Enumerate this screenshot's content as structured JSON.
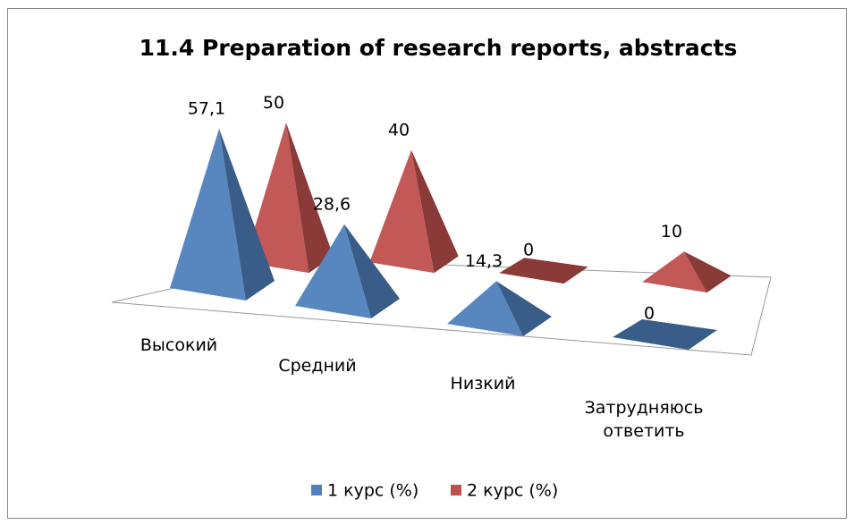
{
  "chart_data": {
    "type": "pyramid3d",
    "title": "11.4 Preparation of research reports, abstracts",
    "categories": [
      "Высокий",
      "Средний",
      "Низкий",
      "Затрудняюсь ответить"
    ],
    "series": [
      {
        "name": "1 курс (%)",
        "color": "#4f81bd",
        "values": [
          57.1,
          28.6,
          14.3,
          0
        ],
        "value_labels": [
          "57,1",
          "28,6",
          "14,3",
          "0"
        ]
      },
      {
        "name": "2 курс (%)",
        "color": "#c0504d",
        "values": [
          50,
          40,
          0,
          10
        ],
        "value_labels": [
          "50",
          "40",
          "0",
          "10"
        ]
      }
    ],
    "legend": "bottom"
  }
}
